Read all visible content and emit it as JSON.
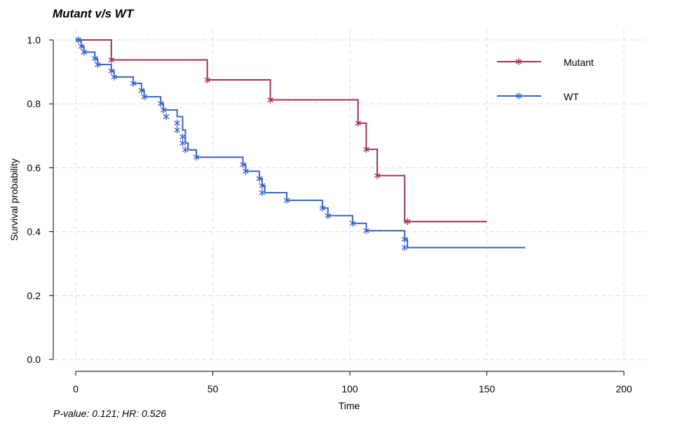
{
  "chart_data": {
    "type": "line",
    "title": "Mutant v/s WT",
    "footnote": "P-value: 0.121; HR: 0.526",
    "xlabel": "Time",
    "ylabel": "Survival probability",
    "xlim": [
      0,
      200
    ],
    "ylim": [
      0,
      1
    ],
    "xticks": [
      0,
      50,
      100,
      150,
      200
    ],
    "yticks": [
      0,
      0.2,
      0.4,
      0.6,
      0.8,
      1
    ],
    "xtick_labels": [
      "0",
      "50",
      "100",
      "150",
      "200"
    ],
    "ytick_labels": [
      "0.0",
      "0.2",
      "0.4",
      "0.6",
      "0.8",
      "1.0"
    ],
    "grid": true,
    "legend_position": "top-right",
    "series": [
      {
        "name": "Mutant",
        "color": "#a0305a",
        "steps": [
          [
            0,
            1.0
          ],
          [
            13,
            0.9375
          ],
          [
            48,
            0.875
          ],
          [
            71,
            0.8125
          ],
          [
            103,
            0.7396
          ],
          [
            106,
            0.6575
          ],
          [
            110,
            0.5753
          ],
          [
            120,
            0.4315
          ]
        ],
        "end_time": 150,
        "censored": [
          [
            1,
            1.0
          ],
          [
            13,
            0.9375
          ],
          [
            48,
            0.875
          ],
          [
            71,
            0.8125
          ],
          [
            103,
            0.7396
          ],
          [
            106,
            0.6575
          ],
          [
            110,
            0.5753
          ],
          [
            121,
            0.4315
          ]
        ]
      },
      {
        "name": "WT",
        "color": "#3a62c8",
        "steps": [
          [
            0,
            1.0
          ],
          [
            2,
            0.98
          ],
          [
            3,
            0.962
          ],
          [
            7,
            0.942
          ],
          [
            8,
            0.923
          ],
          [
            13,
            0.903
          ],
          [
            14,
            0.884
          ],
          [
            21,
            0.864
          ],
          [
            24,
            0.842
          ],
          [
            25,
            0.822
          ],
          [
            31,
            0.801
          ],
          [
            32,
            0.781
          ],
          [
            37,
            0.76
          ],
          [
            39,
            0.718
          ],
          [
            40,
            0.677
          ],
          [
            41,
            0.656
          ],
          [
            44,
            0.633
          ],
          [
            61,
            0.61
          ],
          [
            62,
            0.589
          ],
          [
            67,
            0.566
          ],
          [
            68,
            0.544
          ],
          [
            69,
            0.522
          ],
          [
            77,
            0.498
          ],
          [
            90,
            0.474
          ],
          [
            92,
            0.45
          ],
          [
            101,
            0.426
          ],
          [
            106,
            0.403
          ],
          [
            120,
            0.376
          ],
          [
            121,
            0.35
          ]
        ],
        "end_time": 164,
        "censored": [
          [
            1,
            1.0
          ],
          [
            2,
            0.98
          ],
          [
            3,
            0.962
          ],
          [
            7,
            0.942
          ],
          [
            8,
            0.923
          ],
          [
            13,
            0.903
          ],
          [
            14,
            0.884
          ],
          [
            21,
            0.864
          ],
          [
            24,
            0.842
          ],
          [
            25,
            0.822
          ],
          [
            31,
            0.801
          ],
          [
            32,
            0.781
          ],
          [
            33,
            0.76
          ],
          [
            37,
            0.74
          ],
          [
            37,
            0.718
          ],
          [
            39,
            0.697
          ],
          [
            39,
            0.677
          ],
          [
            40,
            0.656
          ],
          [
            44,
            0.633
          ],
          [
            61,
            0.61
          ],
          [
            62,
            0.589
          ],
          [
            67,
            0.566
          ],
          [
            68,
            0.544
          ],
          [
            68,
            0.522
          ],
          [
            77,
            0.498
          ],
          [
            90,
            0.474
          ],
          [
            92,
            0.45
          ],
          [
            101,
            0.426
          ],
          [
            106,
            0.403
          ],
          [
            120,
            0.376
          ],
          [
            120,
            0.35
          ]
        ]
      }
    ]
  }
}
